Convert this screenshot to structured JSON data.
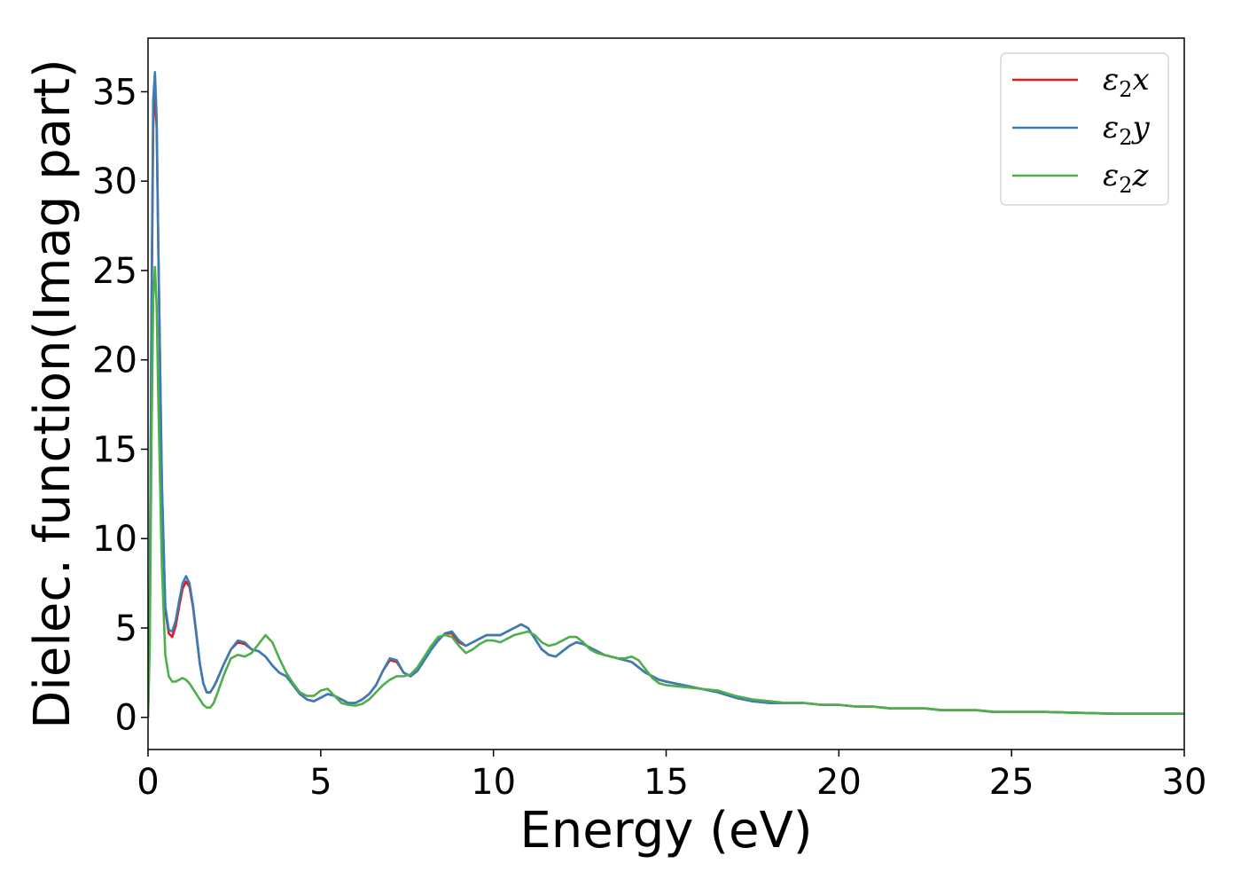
{
  "chart_data": {
    "type": "line",
    "title": "",
    "xlabel": "Energy (eV)",
    "ylabel": "Dielec. function(Imag part)",
    "xlim": [
      0,
      30
    ],
    "ylim": [
      -1.8,
      38
    ],
    "xticks": [
      0,
      5,
      10,
      15,
      20,
      25,
      30
    ],
    "yticks": [
      0,
      5,
      10,
      15,
      20,
      25,
      30,
      35
    ],
    "grid": false,
    "legend_position": "top-right",
    "series": [
      {
        "name": "ε2x",
        "name_parts": {
          "base": "ε",
          "sub": "2",
          "axis": "x"
        },
        "color": "#e41a1c",
        "x": [
          0,
          0.05,
          0.1,
          0.15,
          0.2,
          0.25,
          0.3,
          0.4,
          0.5,
          0.6,
          0.7,
          0.8,
          0.9,
          1.0,
          1.1,
          1.2,
          1.3,
          1.4,
          1.5,
          1.6,
          1.7,
          1.8,
          1.9,
          2.0,
          2.2,
          2.4,
          2.6,
          2.8,
          3.0,
          3.2,
          3.4,
          3.6,
          3.8,
          4.0,
          4.2,
          4.4,
          4.6,
          4.8,
          5.0,
          5.2,
          5.4,
          5.6,
          5.8,
          6.0,
          6.2,
          6.4,
          6.6,
          6.8,
          7.0,
          7.2,
          7.4,
          7.6,
          7.8,
          8.0,
          8.2,
          8.4,
          8.6,
          8.8,
          9.0,
          9.2,
          9.4,
          9.6,
          9.8,
          10.0,
          10.2,
          10.4,
          10.6,
          10.8,
          11.0,
          11.2,
          11.4,
          11.6,
          11.8,
          12.0,
          12.2,
          12.4,
          12.6,
          12.8,
          13.0,
          13.2,
          13.4,
          13.6,
          13.8,
          14.0,
          14.2,
          14.4,
          14.6,
          14.8,
          15.0,
          15.5,
          16.0,
          16.5,
          17.0,
          17.5,
          18.0,
          18.5,
          19.0,
          19.5,
          20.0,
          20.5,
          21.0,
          21.5,
          22.0,
          22.5,
          23.0,
          23.5,
          24.0,
          24.5,
          25.0,
          26.0,
          27.0,
          28.0,
          29.0,
          30.0
        ],
        "values": [
          0,
          5.0,
          22.0,
          33.0,
          35.3,
          33.0,
          26.0,
          13.0,
          6.0,
          4.7,
          4.5,
          5.1,
          6.2,
          7.2,
          7.6,
          7.3,
          6.2,
          4.6,
          3.0,
          1.9,
          1.4,
          1.4,
          1.7,
          2.1,
          3.0,
          3.8,
          4.2,
          4.1,
          3.8,
          3.7,
          3.4,
          2.9,
          2.5,
          2.3,
          1.8,
          1.3,
          1.0,
          0.9,
          1.1,
          1.3,
          1.2,
          1.0,
          0.8,
          0.8,
          1.0,
          1.3,
          1.8,
          2.6,
          3.2,
          3.1,
          2.5,
          2.3,
          2.6,
          3.2,
          3.8,
          4.3,
          4.7,
          4.7,
          4.2,
          4.0,
          4.2,
          4.4,
          4.6,
          4.6,
          4.6,
          4.8,
          5.0,
          5.2,
          5.0,
          4.4,
          3.8,
          3.5,
          3.4,
          3.7,
          4.0,
          4.2,
          4.1,
          3.9,
          3.7,
          3.5,
          3.4,
          3.3,
          3.2,
          3.1,
          2.8,
          2.5,
          2.3,
          2.1,
          2.0,
          1.8,
          1.6,
          1.4,
          1.1,
          0.9,
          0.8,
          0.8,
          0.8,
          0.7,
          0.7,
          0.6,
          0.6,
          0.5,
          0.5,
          0.5,
          0.4,
          0.4,
          0.4,
          0.3,
          0.3,
          0.3,
          0.25,
          0.2,
          0.2,
          0.2
        ]
      },
      {
        "name": "ε2y",
        "name_parts": {
          "base": "ε",
          "sub": "2",
          "axis": "y"
        },
        "color": "#377eb8",
        "x": [
          0,
          0.05,
          0.1,
          0.15,
          0.2,
          0.25,
          0.3,
          0.4,
          0.5,
          0.6,
          0.7,
          0.8,
          0.9,
          1.0,
          1.1,
          1.2,
          1.3,
          1.4,
          1.5,
          1.6,
          1.7,
          1.8,
          1.9,
          2.0,
          2.2,
          2.4,
          2.6,
          2.8,
          3.0,
          3.2,
          3.4,
          3.6,
          3.8,
          4.0,
          4.2,
          4.4,
          4.6,
          4.8,
          5.0,
          5.2,
          5.4,
          5.6,
          5.8,
          6.0,
          6.2,
          6.4,
          6.6,
          6.8,
          7.0,
          7.2,
          7.4,
          7.6,
          7.8,
          8.0,
          8.2,
          8.4,
          8.6,
          8.8,
          9.0,
          9.2,
          9.4,
          9.6,
          9.8,
          10.0,
          10.2,
          10.4,
          10.6,
          10.8,
          11.0,
          11.2,
          11.4,
          11.6,
          11.8,
          12.0,
          12.2,
          12.4,
          12.6,
          12.8,
          13.0,
          13.2,
          13.4,
          13.6,
          13.8,
          14.0,
          14.2,
          14.4,
          14.6,
          14.8,
          15.0,
          15.5,
          16.0,
          16.5,
          17.0,
          17.5,
          18.0,
          18.5,
          19.0,
          19.5,
          20.0,
          20.5,
          21.0,
          21.5,
          22.0,
          22.5,
          23.0,
          23.5,
          24.0,
          24.5,
          25.0,
          26.0,
          27.0,
          28.0,
          29.0,
          30.0
        ],
        "values": [
          0,
          5.5,
          23.0,
          34.5,
          36.1,
          33.5,
          26.0,
          13.2,
          6.2,
          4.9,
          4.8,
          5.4,
          6.5,
          7.5,
          7.9,
          7.5,
          6.3,
          4.7,
          3.0,
          1.9,
          1.4,
          1.4,
          1.7,
          2.1,
          3.0,
          3.8,
          4.3,
          4.2,
          3.8,
          3.7,
          3.4,
          2.9,
          2.5,
          2.3,
          1.8,
          1.3,
          1.0,
          0.9,
          1.1,
          1.3,
          1.2,
          1.0,
          0.8,
          0.8,
          1.0,
          1.3,
          1.8,
          2.6,
          3.3,
          3.2,
          2.5,
          2.3,
          2.6,
          3.2,
          3.8,
          4.3,
          4.7,
          4.8,
          4.3,
          4.0,
          4.2,
          4.4,
          4.6,
          4.6,
          4.6,
          4.8,
          5.0,
          5.2,
          5.0,
          4.4,
          3.8,
          3.5,
          3.4,
          3.7,
          4.0,
          4.2,
          4.1,
          3.9,
          3.7,
          3.5,
          3.4,
          3.3,
          3.2,
          3.1,
          2.8,
          2.5,
          2.3,
          2.1,
          2.0,
          1.8,
          1.6,
          1.4,
          1.1,
          0.9,
          0.8,
          0.8,
          0.8,
          0.7,
          0.7,
          0.6,
          0.6,
          0.5,
          0.5,
          0.5,
          0.4,
          0.4,
          0.4,
          0.3,
          0.3,
          0.3,
          0.25,
          0.2,
          0.2,
          0.2
        ]
      },
      {
        "name": "ε2z",
        "name_parts": {
          "base": "ε",
          "sub": "2",
          "axis": "z"
        },
        "color": "#4daf4a",
        "x": [
          0,
          0.05,
          0.1,
          0.15,
          0.2,
          0.25,
          0.3,
          0.4,
          0.5,
          0.6,
          0.7,
          0.8,
          0.9,
          1.0,
          1.1,
          1.2,
          1.3,
          1.4,
          1.5,
          1.6,
          1.7,
          1.8,
          1.9,
          2.0,
          2.2,
          2.4,
          2.6,
          2.8,
          3.0,
          3.2,
          3.4,
          3.6,
          3.8,
          4.0,
          4.2,
          4.4,
          4.6,
          4.8,
          5.0,
          5.2,
          5.4,
          5.6,
          5.8,
          6.0,
          6.2,
          6.4,
          6.6,
          6.8,
          7.0,
          7.2,
          7.4,
          7.6,
          7.8,
          8.0,
          8.2,
          8.4,
          8.6,
          8.8,
          9.0,
          9.2,
          9.4,
          9.6,
          9.8,
          10.0,
          10.2,
          10.4,
          10.6,
          10.8,
          11.0,
          11.2,
          11.4,
          11.6,
          11.8,
          12.0,
          12.2,
          12.4,
          12.6,
          12.8,
          13.0,
          13.2,
          13.4,
          13.6,
          13.8,
          14.0,
          14.2,
          14.4,
          14.6,
          14.8,
          15.0,
          15.5,
          16.0,
          16.5,
          17.0,
          17.5,
          18.0,
          18.5,
          19.0,
          19.5,
          20.0,
          20.5,
          21.0,
          21.5,
          22.0,
          22.5,
          23.0,
          23.5,
          24.0,
          24.5,
          25.0,
          26.0,
          27.0,
          28.0,
          29.0,
          30.0
        ],
        "values": [
          0,
          4.0,
          15.5,
          23.5,
          25.2,
          23.0,
          17.5,
          8.5,
          3.5,
          2.3,
          2.0,
          2.0,
          2.1,
          2.2,
          2.1,
          1.9,
          1.6,
          1.3,
          1.0,
          0.7,
          0.55,
          0.55,
          0.8,
          1.3,
          2.4,
          3.3,
          3.5,
          3.4,
          3.6,
          4.1,
          4.6,
          4.2,
          3.3,
          2.5,
          1.9,
          1.4,
          1.2,
          1.2,
          1.5,
          1.6,
          1.2,
          0.8,
          0.7,
          0.65,
          0.75,
          1.0,
          1.4,
          1.8,
          2.1,
          2.3,
          2.3,
          2.4,
          2.8,
          3.4,
          4.0,
          4.5,
          4.6,
          4.5,
          4.0,
          3.6,
          3.8,
          4.1,
          4.3,
          4.3,
          4.2,
          4.4,
          4.6,
          4.7,
          4.8,
          4.6,
          4.2,
          4.0,
          4.1,
          4.3,
          4.5,
          4.5,
          4.2,
          3.8,
          3.6,
          3.5,
          3.4,
          3.3,
          3.3,
          3.4,
          3.2,
          2.7,
          2.2,
          1.9,
          1.8,
          1.7,
          1.6,
          1.5,
          1.2,
          1.0,
          0.9,
          0.8,
          0.8,
          0.7,
          0.7,
          0.6,
          0.6,
          0.5,
          0.5,
          0.5,
          0.4,
          0.4,
          0.4,
          0.3,
          0.3,
          0.3,
          0.25,
          0.2,
          0.2,
          0.2
        ]
      }
    ]
  }
}
